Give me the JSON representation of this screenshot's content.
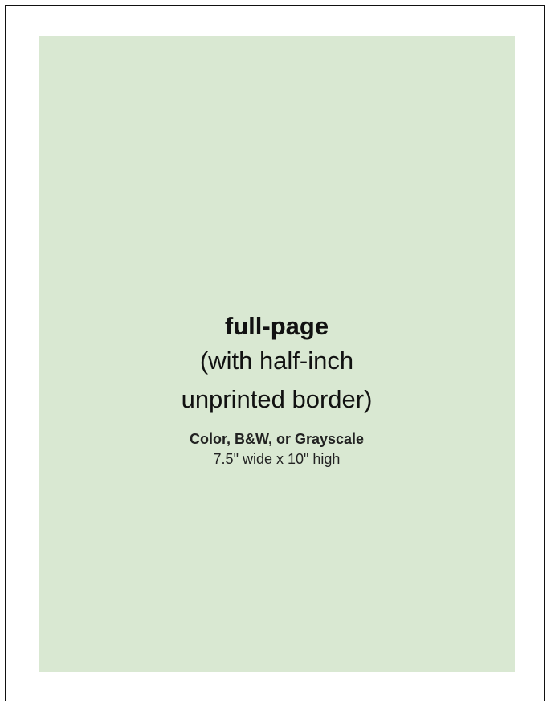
{
  "ad_spec": {
    "title": "full-page",
    "subtitle_line1": "(with half-inch",
    "subtitle_line2": "unprinted border)",
    "color_options": "Color, B&W, or Grayscale",
    "dimensions": "7.5\" wide x 10\" high"
  },
  "colors": {
    "page_background": "#ffffff",
    "ad_area_fill": "#d9e8d2",
    "border": "#111111",
    "text": "#111111"
  }
}
